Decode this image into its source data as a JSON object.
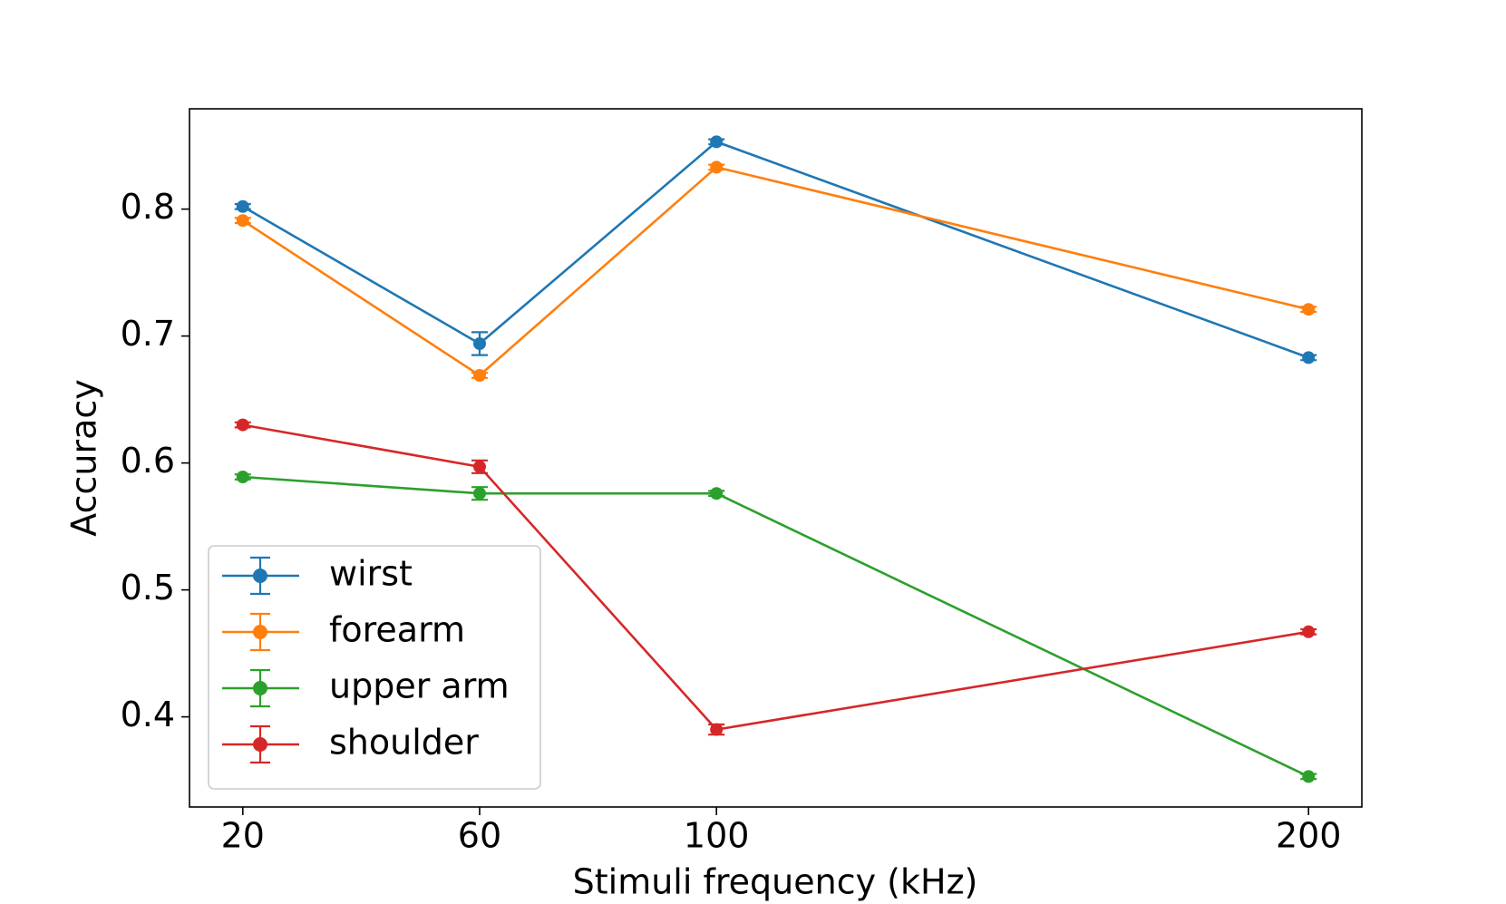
{
  "chart_data": {
    "type": "line",
    "x_label": "Stimuli frequency (kHz)",
    "y_label": "Accuracy",
    "x": [
      20,
      60,
      100,
      200
    ],
    "series": [
      {
        "name": "wirst",
        "color": "#1f77b4",
        "values": [
          0.802,
          0.694,
          0.853,
          0.683
        ],
        "errors": [
          0.002,
          0.009,
          0.002,
          0.002
        ]
      },
      {
        "name": "forearm",
        "color": "#ff7f0e",
        "values": [
          0.791,
          0.669,
          0.833,
          0.721
        ],
        "errors": [
          0.002,
          0.002,
          0.002,
          0.002
        ]
      },
      {
        "name": "upper arm",
        "color": "#2ca02c",
        "values": [
          0.589,
          0.576,
          0.576,
          0.353
        ],
        "errors": [
          0.002,
          0.005,
          0.002,
          0.002
        ]
      },
      {
        "name": "shoulder",
        "color": "#d62728",
        "values": [
          0.63,
          0.597,
          0.39,
          0.467
        ],
        "errors": [
          0.002,
          0.005,
          0.004,
          0.002
        ]
      }
    ],
    "xlim": [
      11,
      209
    ],
    "xticks": [
      20,
      60,
      100,
      200
    ],
    "ylim": [
      0.329,
      0.879
    ],
    "yticks": [
      0.4,
      0.5,
      0.6,
      0.7,
      0.8
    ],
    "legend": "lower left"
  }
}
